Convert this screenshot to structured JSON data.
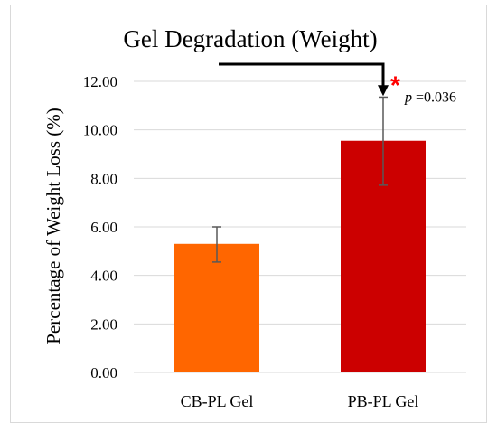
{
  "chart_data": {
    "type": "bar",
    "title": "Gel Degradation (Weight)",
    "ylabel": "Percentage of Weight Loss (%)",
    "xlabel": "",
    "categories": [
      "CB-PL Gel",
      "PB-PL Gel"
    ],
    "values": [
      5.3,
      9.55
    ],
    "error_low": [
      4.55,
      7.72
    ],
    "error_high": [
      6.0,
      11.35
    ],
    "colors": [
      "#ff6600",
      "#cc0000"
    ],
    "ylim": [
      0,
      12
    ],
    "yticks": [
      "0.00",
      "2.00",
      "4.00",
      "6.00",
      "8.00",
      "10.00",
      "12.00"
    ],
    "grid": true,
    "legend": "none",
    "annotation": {
      "star": "*",
      "p_symbol": "p",
      "p_text": " =0.036",
      "target": "PB-PL Gel",
      "star_color": "#ff0000"
    }
  }
}
